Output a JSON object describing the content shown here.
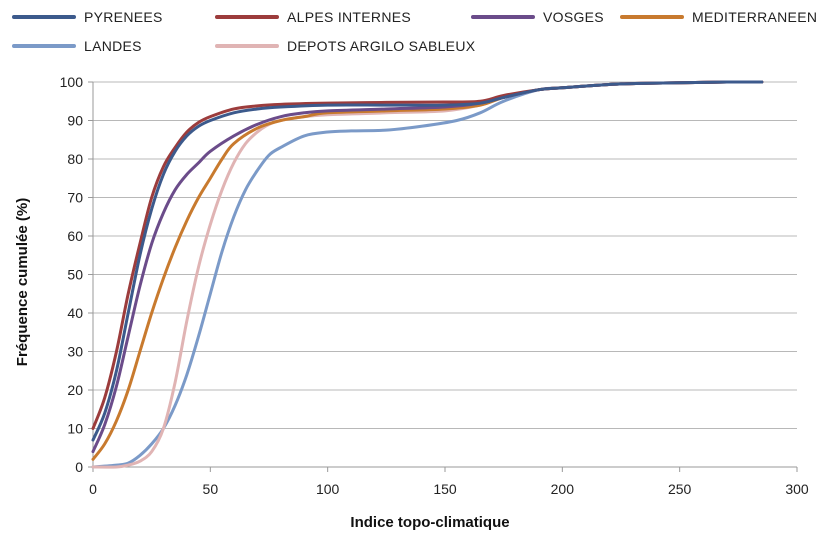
{
  "chart_data": {
    "type": "line",
    "xlabel": "Indice topo-climatique",
    "ylabel": "Fréquence cumulée (%)",
    "xlim": [
      0,
      300
    ],
    "ylim": [
      0,
      100
    ],
    "x_ticks": [
      0,
      50,
      100,
      150,
      200,
      250,
      300
    ],
    "y_ticks": [
      0,
      10,
      20,
      30,
      40,
      50,
      60,
      70,
      80,
      90,
      100
    ],
    "grid": "horizontal",
    "legend_position": "top",
    "series": [
      {
        "name": "PYRENEES",
        "color": "#3c5a8c",
        "points": [
          [
            0,
            7
          ],
          [
            5,
            14
          ],
          [
            10,
            25
          ],
          [
            15,
            40
          ],
          [
            20,
            55
          ],
          [
            25,
            67
          ],
          [
            30,
            76
          ],
          [
            35,
            82
          ],
          [
            40,
            86
          ],
          [
            45,
            88.5
          ],
          [
            50,
            90
          ],
          [
            60,
            92
          ],
          [
            70,
            93
          ],
          [
            80,
            93.5
          ],
          [
            100,
            94
          ],
          [
            125,
            94
          ],
          [
            150,
            94
          ],
          [
            165,
            94.5
          ],
          [
            175,
            96
          ],
          [
            190,
            98
          ],
          [
            200,
            98.5
          ],
          [
            225,
            99.5
          ],
          [
            250,
            99.8
          ],
          [
            270,
            100
          ],
          [
            285,
            100
          ]
        ]
      },
      {
        "name": "ALPES INTERNES",
        "color": "#9c3c3c",
        "points": [
          [
            0,
            10
          ],
          [
            5,
            18
          ],
          [
            10,
            30
          ],
          [
            15,
            45
          ],
          [
            20,
            58
          ],
          [
            25,
            70
          ],
          [
            30,
            78
          ],
          [
            35,
            83
          ],
          [
            40,
            87
          ],
          [
            45,
            89.5
          ],
          [
            50,
            91
          ],
          [
            60,
            93
          ],
          [
            70,
            93.8
          ],
          [
            80,
            94.2
          ],
          [
            100,
            94.5
          ],
          [
            125,
            94.7
          ],
          [
            150,
            94.8
          ],
          [
            165,
            95
          ],
          [
            175,
            96.5
          ],
          [
            190,
            98
          ],
          [
            200,
            98.5
          ],
          [
            225,
            99.5
          ],
          [
            250,
            99.8
          ],
          [
            270,
            100
          ],
          [
            285,
            100
          ]
        ]
      },
      {
        "name": "VOSGES",
        "color": "#6b4c8a",
        "points": [
          [
            0,
            4
          ],
          [
            5,
            11
          ],
          [
            10,
            21
          ],
          [
            15,
            34
          ],
          [
            20,
            47
          ],
          [
            25,
            58
          ],
          [
            30,
            66
          ],
          [
            35,
            72
          ],
          [
            40,
            76
          ],
          [
            45,
            79
          ],
          [
            50,
            82
          ],
          [
            60,
            86
          ],
          [
            70,
            89
          ],
          [
            80,
            91
          ],
          [
            90,
            92
          ],
          [
            100,
            92.5
          ],
          [
            125,
            93
          ],
          [
            150,
            93.5
          ],
          [
            165,
            94.5
          ],
          [
            175,
            96
          ],
          [
            190,
            98
          ],
          [
            200,
            98.5
          ],
          [
            225,
            99.5
          ],
          [
            250,
            99.8
          ],
          [
            270,
            100
          ],
          [
            285,
            100
          ]
        ]
      },
      {
        "name": "MEDITERRANEEN",
        "color": "#c87a2e",
        "points": [
          [
            0,
            2
          ],
          [
            5,
            6
          ],
          [
            10,
            12
          ],
          [
            15,
            20
          ],
          [
            20,
            30
          ],
          [
            25,
            40
          ],
          [
            30,
            49
          ],
          [
            35,
            57
          ],
          [
            40,
            64
          ],
          [
            45,
            70
          ],
          [
            50,
            75
          ],
          [
            55,
            80
          ],
          [
            60,
            84
          ],
          [
            70,
            88
          ],
          [
            80,
            90
          ],
          [
            90,
            91
          ],
          [
            100,
            92
          ],
          [
            125,
            92.5
          ],
          [
            150,
            93
          ],
          [
            165,
            94
          ],
          [
            175,
            96
          ],
          [
            190,
            98
          ],
          [
            200,
            98.5
          ],
          [
            225,
            99.5
          ],
          [
            250,
            99.8
          ],
          [
            270,
            100
          ],
          [
            285,
            100
          ]
        ]
      },
      {
        "name": "LANDES",
        "color": "#7b9ac8",
        "points": [
          [
            0,
            0
          ],
          [
            10,
            0.5
          ],
          [
            15,
            1
          ],
          [
            20,
            3
          ],
          [
            25,
            6
          ],
          [
            30,
            10
          ],
          [
            35,
            16
          ],
          [
            40,
            24
          ],
          [
            45,
            34
          ],
          [
            50,
            45
          ],
          [
            55,
            56
          ],
          [
            60,
            65
          ],
          [
            65,
            72
          ],
          [
            70,
            77
          ],
          [
            75,
            81
          ],
          [
            80,
            83
          ],
          [
            90,
            86
          ],
          [
            100,
            87
          ],
          [
            110,
            87.3
          ],
          [
            125,
            87.5
          ],
          [
            140,
            88.5
          ],
          [
            155,
            90
          ],
          [
            165,
            92
          ],
          [
            175,
            95
          ],
          [
            190,
            98
          ],
          [
            200,
            98.5
          ],
          [
            225,
            99.5
          ],
          [
            250,
            99.8
          ],
          [
            270,
            100
          ],
          [
            285,
            100
          ]
        ]
      },
      {
        "name": "DEPOTS ARGILO SABLEUX",
        "color": "#e0b4b4",
        "points": [
          [
            0,
            0
          ],
          [
            10,
            0
          ],
          [
            15,
            0.5
          ],
          [
            20,
            1.5
          ],
          [
            25,
            4
          ],
          [
            30,
            10
          ],
          [
            35,
            22
          ],
          [
            40,
            38
          ],
          [
            45,
            52
          ],
          [
            50,
            63
          ],
          [
            55,
            72
          ],
          [
            60,
            79
          ],
          [
            65,
            84
          ],
          [
            70,
            87
          ],
          [
            75,
            89
          ],
          [
            80,
            90
          ],
          [
            90,
            91
          ],
          [
            100,
            91.5
          ],
          [
            125,
            92
          ],
          [
            150,
            92.5
          ],
          [
            165,
            94
          ],
          [
            175,
            96
          ],
          [
            190,
            98
          ],
          [
            200,
            98.5
          ],
          [
            225,
            99.5
          ],
          [
            250,
            99.8
          ],
          [
            270,
            100
          ],
          [
            285,
            100
          ]
        ]
      }
    ]
  }
}
